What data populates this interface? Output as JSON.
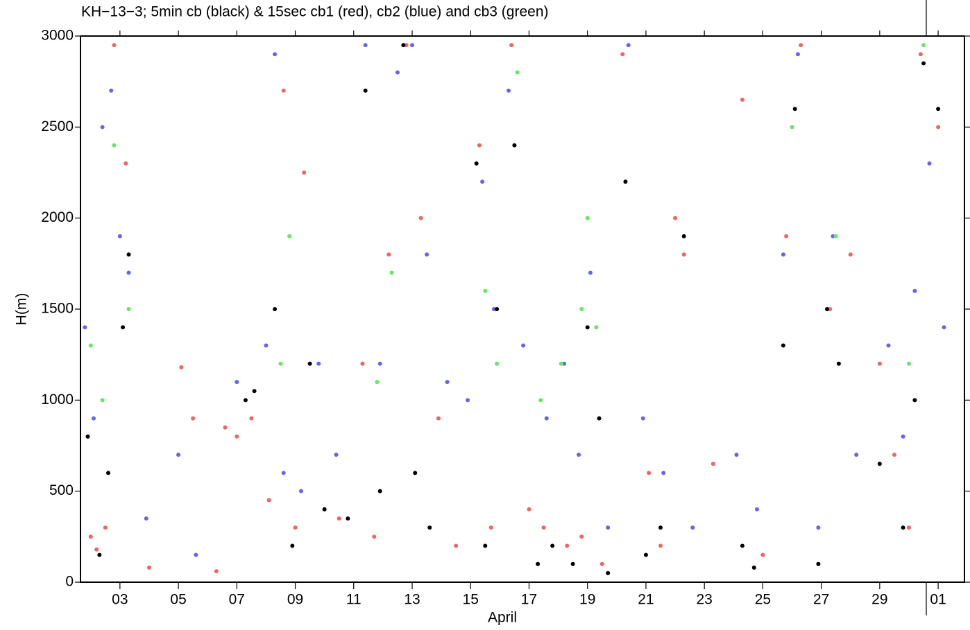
{
  "chart_data": {
    "type": "scatter",
    "title": "KH−13−3; 5min cb (black) & 15sec cb1 (red), cb2 (blue) and cb3 (green)",
    "x_label": "April",
    "y_label": "H(m)",
    "xlim": [
      1.65,
      31.9
    ],
    "ylim": [
      0,
      3000
    ],
    "xticks": [
      {
        "value": 3,
        "label": "03"
      },
      {
        "value": 5,
        "label": "05"
      },
      {
        "value": 7,
        "label": "07"
      },
      {
        "value": 9,
        "label": "09"
      },
      11,
      13,
      15,
      17,
      19,
      21,
      23,
      25,
      27,
      29,
      {
        "value": 31,
        "label": "01"
      }
    ],
    "yticks": [
      0,
      500,
      1000,
      1500,
      2000,
      2500,
      3000
    ],
    "series": [
      {
        "color": "#f06464",
        "x": [
          2.0,
          2.2,
          2.5,
          2.8,
          3.2,
          4.0,
          5.1,
          5.5,
          6.3,
          6.6,
          7.0,
          7.5,
          8.1,
          8.6,
          9.0,
          9.3,
          10.0,
          10.5,
          11.3,
          11.7,
          12.2,
          12.8,
          13.3,
          13.9,
          14.5,
          15.3,
          15.7,
          16.4,
          17.0,
          17.5,
          18.3,
          18.8,
          19.5,
          20.2,
          21.1,
          21.5,
          22.0,
          22.3,
          23.3,
          24.3,
          25.0,
          25.8,
          26.3,
          27.3,
          28.0,
          29.0,
          29.5,
          30.0,
          30.4,
          31.0
        ],
        "values": [
          250,
          180,
          300,
          2950,
          2300,
          80,
          1180,
          900,
          60,
          850,
          800,
          900,
          450,
          2700,
          300,
          2250,
          400,
          350,
          1200,
          250,
          1800,
          2950,
          2000,
          900,
          200,
          2400,
          300,
          2950,
          400,
          300,
          200,
          250,
          100,
          2900,
          600,
          200,
          2000,
          1800,
          650,
          2650,
          150,
          1900,
          2950,
          1500,
          1800,
          1200,
          700,
          300,
          2900,
          2500
        ]
      },
      {
        "color": "#6464f0",
        "x": [
          1.8,
          2.1,
          2.4,
          2.7,
          3.0,
          3.3,
          3.9,
          5.0,
          5.6,
          7.0,
          8.0,
          8.3,
          8.6,
          9.2,
          9.8,
          10.4,
          11.4,
          11.9,
          12.5,
          13.0,
          13.5,
          14.2,
          14.9,
          15.4,
          15.8,
          16.3,
          16.8,
          17.6,
          18.2,
          18.7,
          19.1,
          19.7,
          20.4,
          20.9,
          21.6,
          22.6,
          24.1,
          24.8,
          25.7,
          26.2,
          26.9,
          27.4,
          28.2,
          29.3,
          29.8,
          30.2,
          30.7,
          31.2
        ],
        "values": [
          1400,
          900,
          2500,
          2700,
          1900,
          1700,
          350,
          700,
          150,
          1100,
          1300,
          2900,
          600,
          500,
          1200,
          700,
          2950,
          1200,
          2800,
          2950,
          1800,
          1100,
          1000,
          2200,
          1500,
          2700,
          1300,
          900,
          1200,
          700,
          1700,
          300,
          2950,
          900,
          600,
          300,
          700,
          400,
          1800,
          2900,
          300,
          1900,
          700,
          1300,
          800,
          1600,
          2300,
          1400
        ]
      },
      {
        "color": "#64e864",
        "x": [
          2.0,
          2.4,
          2.8,
          3.3,
          8.5,
          8.8,
          11.8,
          12.3,
          15.5,
          15.9,
          16.6,
          17.4,
          18.1,
          18.8,
          19.0,
          19.3,
          26.0,
          27.5,
          30.0,
          30.5
        ],
        "values": [
          1300,
          1000,
          2400,
          1500,
          1200,
          1900,
          1100,
          1700,
          1600,
          1200,
          2800,
          1000,
          1200,
          1500,
          2000,
          1400,
          2500,
          1900,
          1200,
          2950
        ]
      },
      {
        "color": "#000000",
        "x": [
          1.9,
          2.3,
          2.6,
          3.1,
          3.3,
          7.3,
          7.6,
          8.3,
          8.9,
          9.5,
          10.0,
          10.8,
          11.4,
          11.9,
          12.7,
          13.1,
          13.6,
          15.2,
          15.5,
          15.9,
          16.5,
          17.3,
          17.8,
          18.5,
          19.0,
          19.4,
          19.7,
          20.3,
          21.0,
          21.5,
          22.3,
          24.3,
          24.7,
          25.7,
          26.1,
          26.9,
          27.2,
          27.6,
          29.0,
          29.8,
          30.2,
          30.5,
          31.0
        ],
        "values": [
          800,
          150,
          600,
          1400,
          1800,
          1000,
          1050,
          1500,
          200,
          1200,
          400,
          350,
          2700,
          500,
          2950,
          600,
          300,
          2300,
          200,
          1500,
          2400,
          100,
          200,
          100,
          1400,
          900,
          50,
          2200,
          150,
          300,
          1900,
          200,
          80,
          1300,
          2600,
          100,
          1500,
          1200,
          650,
          300,
          1000,
          2850,
          2600
        ]
      }
    ]
  }
}
